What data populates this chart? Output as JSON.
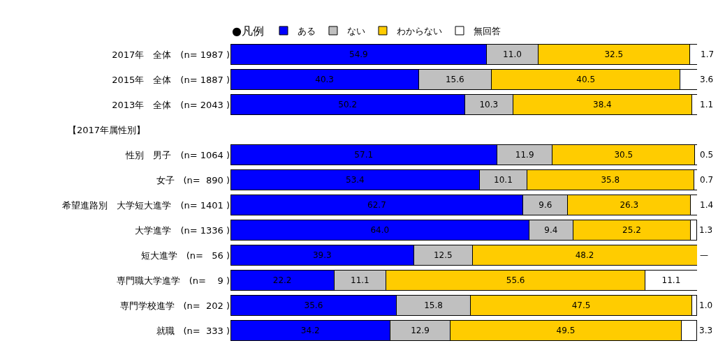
{
  "chart_data": {
    "type": "bar",
    "orientation": "horizontal",
    "stacked": true,
    "legend": "top",
    "legend_title": "●凡例",
    "tick_labels": "y",
    "xlim": [
      0,
      100
    ],
    "categories": [
      "2017年　全体　(n= 1987 )",
      "2015年　全体　(n= 1887 )",
      "2013年　全体　(n= 2043 )",
      null,
      "性別　男子　(n= 1064 )",
      "女子　(n=  890 )",
      "希望進路別　大学短大進学　(n= 1401 )",
      "大学進学　(n= 1336 )",
      "短大進学　(n=   56 )",
      "専門職大学進学　(n=    9 )",
      "専門学校進学　(n=  202 )",
      "就職　(n=  333 )"
    ],
    "series": [
      {
        "name": "ある",
        "color": "#0000ff",
        "values": [
          54.9,
          40.3,
          50.2,
          null,
          57.1,
          53.4,
          62.7,
          64.0,
          39.3,
          22.2,
          35.6,
          34.2
        ],
        "value_labels": [
          "54.9",
          "40.3",
          "50.2",
          null,
          "57.1",
          "53.4",
          "62.7",
          "64.0",
          "39.3",
          "22.2",
          "35.6",
          "34.2"
        ]
      },
      {
        "name": "ない",
        "color": "#c0c0c0",
        "values": [
          11.0,
          15.6,
          10.3,
          null,
          11.9,
          10.1,
          9.6,
          9.4,
          12.5,
          11.1,
          15.8,
          12.9
        ],
        "value_labels": [
          "11.0",
          "15.6",
          "10.3",
          null,
          "11.9",
          "10.1",
          "9.6",
          "9.4",
          "12.5",
          "11.1",
          "15.8",
          "12.9"
        ]
      },
      {
        "name": "わからない",
        "color": "#ffcc00",
        "values": [
          32.5,
          40.5,
          38.4,
          null,
          30.5,
          35.8,
          26.3,
          25.2,
          48.2,
          55.6,
          47.5,
          49.5
        ],
        "value_labels": [
          "32.5",
          "40.5",
          "38.4",
          null,
          "30.5",
          "35.8",
          "26.3",
          "25.2",
          "48.2",
          "55.6",
          "47.5",
          "49.5"
        ]
      },
      {
        "name": "無回答",
        "color": "#ffffff",
        "values": [
          1.7,
          3.6,
          1.1,
          null,
          0.5,
          0.7,
          1.4,
          1.3,
          0,
          11.1,
          1.0,
          3.3
        ],
        "value_labels": [
          "1.7",
          "3.6",
          "1.1",
          null,
          "0.5",
          "0.7",
          "1.4",
          "1.3",
          "—",
          "11.1",
          "1.0",
          "3.3"
        ]
      }
    ],
    "annotations": [
      "【2017年属性別】"
    ]
  }
}
